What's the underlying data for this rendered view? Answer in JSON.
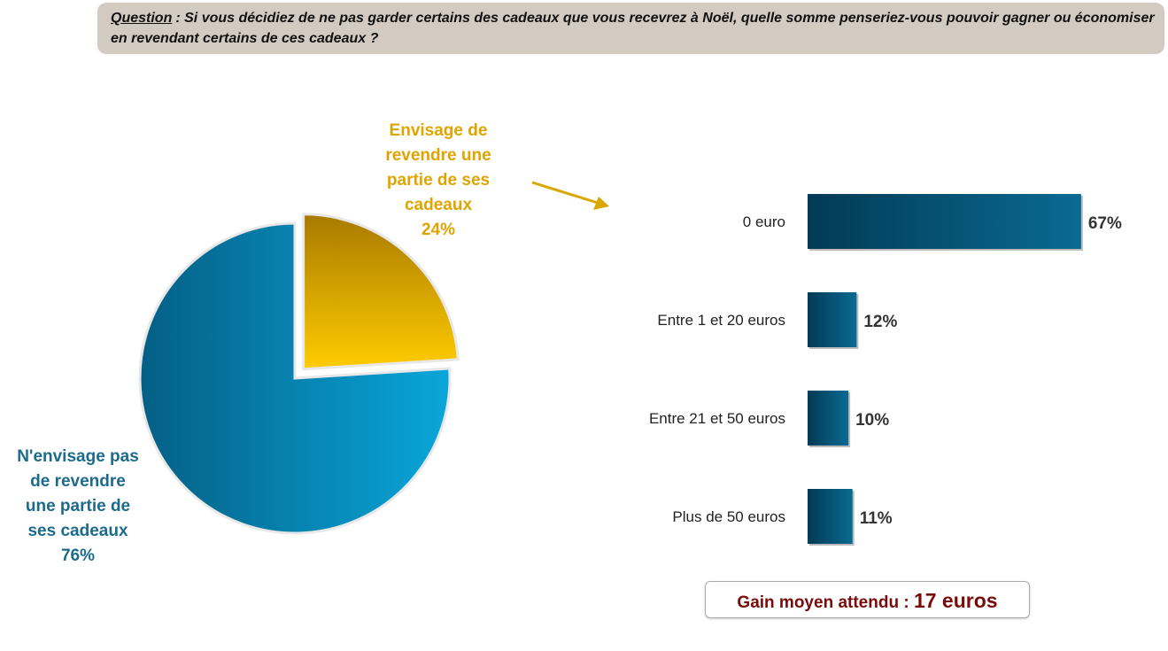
{
  "question": {
    "label": "Question",
    "sep": ":",
    "text": "Si vous décidiez de ne pas garder certains des cadeaux que vous recevrez à Noël, quelle somme penseriez-vous pouvoir gagner ou économiser en revendant certains de ces cadeaux ?"
  },
  "chart_data": [
    {
      "type": "pie",
      "slices": [
        {
          "label": "Envisage de revendre une partie de ses cadeaux",
          "value": 24,
          "value_label": "24%",
          "color": "#e6b000",
          "exploded": true
        },
        {
          "label": "N'envisage pas de revendre une partie de ses cadeaux",
          "value": 76,
          "value_label": "76%",
          "color": "#0a8ac0"
        }
      ]
    },
    {
      "type": "bar",
      "orientation": "horizontal",
      "categories": [
        "0 euro",
        "Entre 1 et 20 euros",
        "Entre 21 et 50 euros",
        "Plus de 50 euros"
      ],
      "values": [
        67,
        12,
        10,
        11
      ],
      "value_labels": [
        "67%",
        "12%",
        "10%",
        "11%"
      ],
      "color": "#04587a"
    }
  ],
  "pie_labels": {
    "yes_lines": [
      "Envisage de",
      "revendre une",
      "partie de ses",
      "cadeaux",
      "24%"
    ],
    "no_lines": [
      "N'envisage pas",
      "de revendre",
      "une partie de",
      "ses cadeaux",
      "76%"
    ]
  },
  "gain": {
    "label": "Gain moyen attendu :",
    "value": "17 euros"
  }
}
